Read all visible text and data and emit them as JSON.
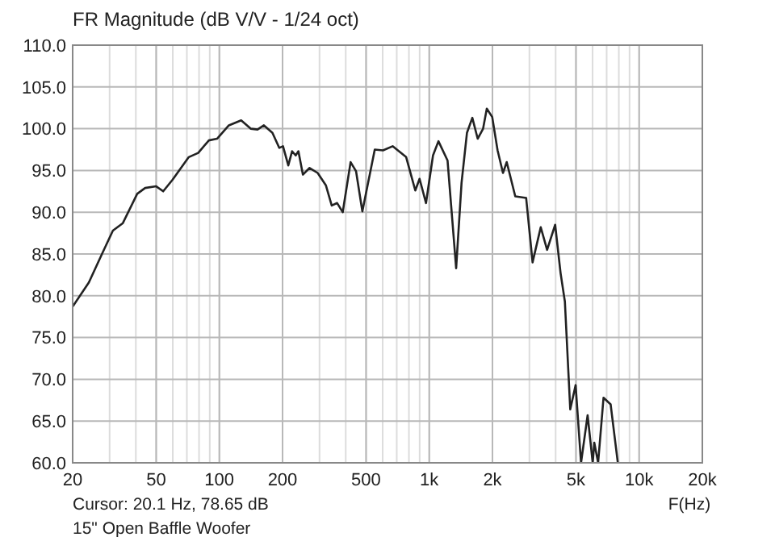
{
  "chart_data": {
    "type": "line",
    "title": "FR Magnitude (dB V/V - 1/24 oct)",
    "xlabel": "F(Hz)",
    "annotations": [
      "Cursor: 20.1 Hz, 78.65 dB",
      "15\" Open Baffle Woofer"
    ],
    "log": "x",
    "grid": true,
    "marker": "none",
    "line_style": "solid",
    "xlim": [
      20,
      20000
    ],
    "ylim": [
      60,
      110
    ],
    "xticks": [
      20,
      50,
      100,
      200,
      500,
      {
        "value": 1000,
        "label": "1k"
      },
      {
        "value": 2000,
        "label": "2k"
      },
      {
        "value": 5000,
        "label": "5k"
      },
      {
        "value": 10000,
        "label": "10k"
      },
      {
        "value": 20000,
        "label": "20k"
      }
    ],
    "yticks": [
      {
        "value": 60,
        "label": "60.0"
      },
      {
        "value": 65,
        "label": "65.0"
      },
      {
        "value": 70,
        "label": "70.0"
      },
      {
        "value": 75,
        "label": "75.0"
      },
      {
        "value": 80,
        "label": "80.0"
      },
      {
        "value": 85,
        "label": "85.0"
      },
      {
        "value": 90,
        "label": "90.0"
      },
      {
        "value": 95,
        "label": "95.0"
      },
      {
        "value": 100,
        "label": "100.0"
      },
      {
        "value": 105,
        "label": "105.0"
      },
      {
        "value": 110,
        "label": "110.0"
      }
    ],
    "series": [
      {
        "color": "#222222",
        "x": [
          20,
          23.9,
          27.7,
          31.1,
          34.7,
          40.6,
          44.3,
          50,
          54,
          59.9,
          71.5,
          79.3,
          89.1,
          97.5,
          111,
          127,
          141,
          152,
          163,
          179,
          193,
          201,
          213,
          222,
          231,
          238,
          250,
          269,
          294,
          322,
          343,
          364,
          387,
          422,
          448,
          480,
          550,
          602,
          669,
          776,
          858,
          899,
          965,
          1042,
          1106,
          1222,
          1343,
          1425,
          1512,
          1604,
          1701,
          1805,
          1880,
          1995,
          2116,
          2245,
          2339,
          2569,
          2895,
          3106,
          3397,
          3643,
          3979,
          4224,
          4427,
          4695,
          4981,
          5286,
          5681,
          6008,
          6115,
          6375,
          6765,
          7313,
          7914
        ],
        "values": [
          78.7,
          81.6,
          85.1,
          87.8,
          88.7,
          92.2,
          92.9,
          93.1,
          92.5,
          93.9,
          96.6,
          97.1,
          98.6,
          98.8,
          100.4,
          101,
          100,
          99.9,
          100.4,
          99.5,
          97.7,
          97.9,
          95.6,
          97.3,
          96.8,
          97.3,
          94.5,
          95.3,
          94.7,
          93.2,
          90.8,
          91.1,
          90,
          96,
          94.9,
          90.1,
          97.5,
          97.4,
          97.9,
          96.6,
          92.6,
          94,
          91.1,
          96.8,
          98.5,
          96.2,
          83.3,
          93.5,
          99.5,
          101.3,
          98.8,
          100,
          102.4,
          101.4,
          97.4,
          94.7,
          96,
          91.9,
          91.7,
          84,
          88.2,
          85.5,
          88.5,
          82.7,
          79.3,
          66.4,
          69.3,
          60,
          65.7,
          60,
          62.4,
          60,
          67.8,
          67,
          60
        ]
      }
    ]
  }
}
